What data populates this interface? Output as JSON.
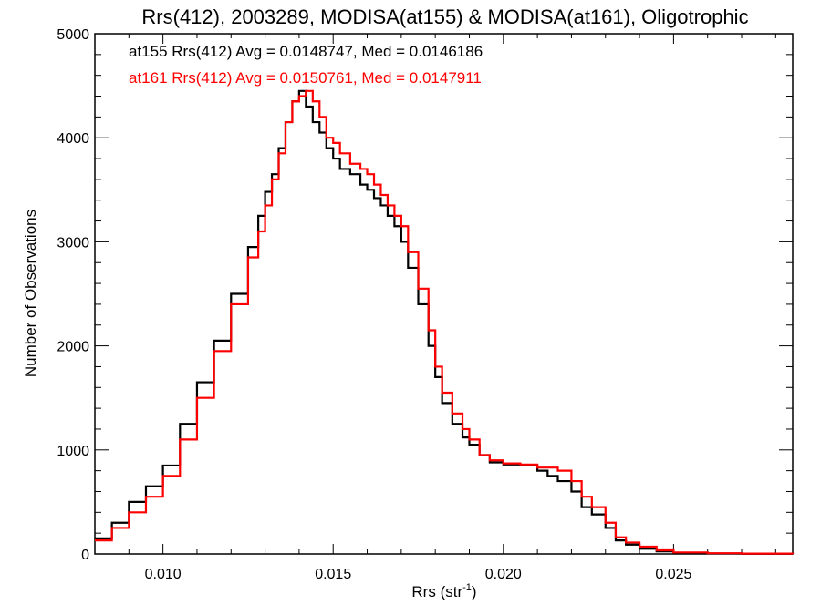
{
  "chart_data": {
    "type": "line",
    "title": "Rrs(412), 2003289, MODISA(at155) & MODISA(at161), Oligotrophic",
    "xlabel": "Rrs (str",
    "xlabel_sup": "-1",
    "xlabel_end": ")",
    "ylabel": "Number of Observations",
    "xlim": [
      0.008,
      0.0285
    ],
    "ylim": [
      0,
      5000
    ],
    "xticks": [
      0.01,
      0.015,
      0.02,
      0.025
    ],
    "xtick_labels": [
      "0.010",
      "0.015",
      "0.020",
      "0.025"
    ],
    "yticks": [
      0,
      1000,
      2000,
      3000,
      4000,
      5000
    ],
    "ytick_labels": [
      "0",
      "1000",
      "2000",
      "3000",
      "4000",
      "5000"
    ],
    "grid": false,
    "step": true,
    "annotations": [
      "at155 Rrs(412) Avg = 0.0148747, Med = 0.0146186",
      "at161 Rrs(412) Avg = 0.0150761, Med = 0.0147911"
    ],
    "series": [
      {
        "color": "#000000",
        "x": [
          0.008,
          0.0085,
          0.009,
          0.0095,
          0.01,
          0.0105,
          0.011,
          0.0115,
          0.012,
          0.0125,
          0.0128,
          0.013,
          0.0132,
          0.0134,
          0.0136,
          0.0138,
          0.014,
          0.0142,
          0.0144,
          0.0146,
          0.0148,
          0.015,
          0.0152,
          0.0155,
          0.0158,
          0.016,
          0.0162,
          0.0164,
          0.0166,
          0.0168,
          0.017,
          0.0172,
          0.0175,
          0.0178,
          0.018,
          0.0182,
          0.0185,
          0.0188,
          0.019,
          0.0193,
          0.0196,
          0.02,
          0.0205,
          0.021,
          0.0213,
          0.0216,
          0.022,
          0.0223,
          0.0226,
          0.023,
          0.0233,
          0.0236,
          0.024,
          0.0245,
          0.025,
          0.026,
          0.027,
          0.0285
        ],
        "y": [
          150,
          300,
          500,
          650,
          850,
          1250,
          1650,
          2050,
          2500,
          2950,
          3250,
          3480,
          3650,
          3900,
          4150,
          4350,
          4450,
          4300,
          4150,
          4050,
          3900,
          3800,
          3700,
          3650,
          3550,
          3500,
          3420,
          3350,
          3250,
          3150,
          3000,
          2750,
          2400,
          2000,
          1700,
          1450,
          1250,
          1120,
          1050,
          950,
          880,
          860,
          850,
          800,
          750,
          700,
          600,
          450,
          380,
          250,
          130,
          90,
          50,
          25,
          10,
          5,
          2,
          0
        ],
        "_series_note": "at155"
      },
      {
        "color": "#ff0000",
        "x": [
          0.008,
          0.0085,
          0.009,
          0.0095,
          0.01,
          0.0105,
          0.011,
          0.0115,
          0.012,
          0.0125,
          0.0128,
          0.013,
          0.0132,
          0.0134,
          0.0136,
          0.0138,
          0.014,
          0.0142,
          0.0144,
          0.0146,
          0.0148,
          0.015,
          0.0152,
          0.0155,
          0.0158,
          0.016,
          0.0162,
          0.0164,
          0.0166,
          0.0168,
          0.017,
          0.0172,
          0.0175,
          0.0178,
          0.018,
          0.0182,
          0.0185,
          0.0188,
          0.019,
          0.0193,
          0.0196,
          0.02,
          0.0205,
          0.021,
          0.0213,
          0.0216,
          0.022,
          0.0223,
          0.0226,
          0.023,
          0.0233,
          0.0236,
          0.024,
          0.0245,
          0.025,
          0.026,
          0.027,
          0.0285
        ],
        "y": [
          130,
          250,
          400,
          550,
          750,
          1100,
          1500,
          1950,
          2400,
          2850,
          3100,
          3350,
          3600,
          3850,
          4150,
          4350,
          4400,
          4450,
          4350,
          4200,
          4000,
          3950,
          3850,
          3750,
          3700,
          3650,
          3550,
          3450,
          3350,
          3250,
          3150,
          2900,
          2550,
          2150,
          1800,
          1550,
          1350,
          1200,
          1100,
          950,
          900,
          870,
          860,
          830,
          830,
          800,
          700,
          550,
          450,
          300,
          160,
          110,
          70,
          35,
          15,
          7,
          3,
          0
        ],
        "_series_note": "at161"
      }
    ]
  }
}
